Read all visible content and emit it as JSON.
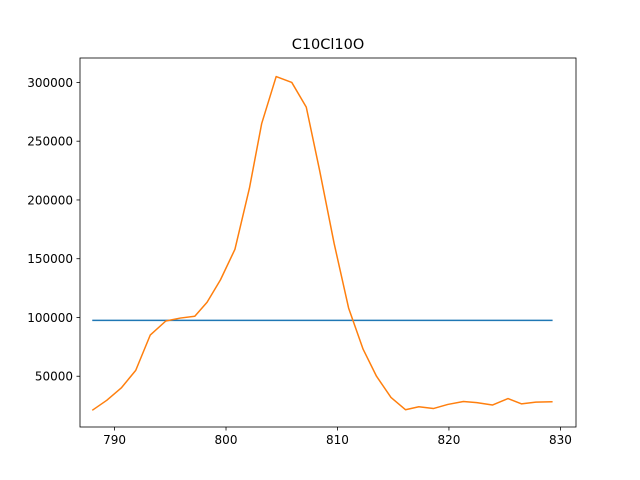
{
  "chart_data": {
    "type": "line",
    "title": "C10Cl10O",
    "xlabel": "",
    "ylabel": "",
    "xlim": [
      786.9,
      831.4
    ],
    "ylim": [
      6800,
      320800
    ],
    "x_ticks": [
      790,
      800,
      810,
      820,
      830
    ],
    "y_ticks": [
      50000,
      100000,
      150000,
      200000,
      250000,
      300000
    ],
    "grid": false,
    "legend": "none",
    "series": [
      {
        "color": "#1f77b4",
        "x": [
          788.0,
          829.3
        ],
        "y": [
          97500,
          97500
        ]
      },
      {
        "color": "#ff7f0e",
        "x": [
          788.0,
          789.3,
          790.6,
          791.9,
          793.2,
          794.6,
          795.9,
          797.2,
          798.3,
          799.5,
          800.8,
          802.1,
          803.2,
          804.5,
          805.9,
          807.2,
          808.4,
          809.7,
          811.0,
          812.3,
          813.5,
          814.8,
          816.1,
          817.3,
          818.6,
          819.9,
          821.3,
          822.5,
          823.9,
          825.3,
          826.5,
          827.8,
          829.3
        ],
        "y": [
          21000,
          29500,
          40000,
          55000,
          85000,
          97000,
          99500,
          101000,
          113000,
          132000,
          158000,
          210000,
          265000,
          305000,
          300000,
          279000,
          225000,
          163000,
          108000,
          73000,
          50000,
          32000,
          21500,
          24000,
          22500,
          26000,
          28500,
          27500,
          25500,
          31000,
          26500,
          28000,
          28300
        ]
      }
    ]
  }
}
